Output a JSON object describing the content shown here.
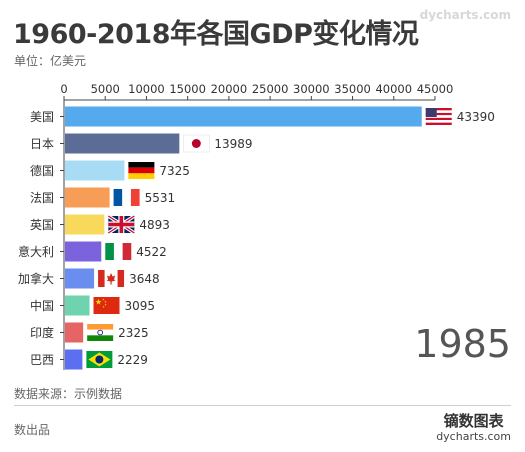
{
  "title": "1960-2018年各国GDP变化情况",
  "unit_label": "单位：亿美元",
  "watermark": "dycharts.com",
  "year": "1985",
  "source": "数据来源：示例数据",
  "footer_left": "数出品",
  "brand": {
    "name": "镝数图表",
    "url": "dycharts.com"
  },
  "chart_data": {
    "type": "bar",
    "orientation": "horizontal",
    "categories": [
      "美国",
      "日本",
      "德国",
      "法国",
      "英国",
      "意大利",
      "加拿大",
      "中国",
      "印度",
      "巴西"
    ],
    "values": [
      43390,
      13989,
      7325,
      5531,
      4893,
      4522,
      3648,
      3095,
      2325,
      2229
    ],
    "value_labels": [
      "43390",
      "13989",
      "7325",
      "5531",
      "4893",
      "4522",
      "3648",
      "3095",
      "2325",
      "2229"
    ],
    "colors": [
      "#55aaee",
      "#5b6d96",
      "#a8dcf5",
      "#f79d55",
      "#f9d95b",
      "#7b63de",
      "#6a8ef0",
      "#6fd3b0",
      "#e56464",
      "#5b6ff0"
    ],
    "flags": [
      "us-flag-icon",
      "japan-flag-icon",
      "germany-flag-icon",
      "france-flag-icon",
      "uk-flag-icon",
      "italy-flag-icon",
      "canada-flag-icon",
      "china-flag-icon",
      "india-flag-icon",
      "brazil-flag-icon"
    ],
    "xlim": [
      0,
      45000
    ],
    "x_ticks": [
      0,
      5000,
      10000,
      15000,
      20000,
      25000,
      30000,
      35000,
      40000,
      45000
    ],
    "x_tick_labels": [
      "0",
      "5000",
      "10000",
      "15000",
      "20000",
      "25000",
      "30000",
      "35000",
      "40000",
      "45000"
    ],
    "grid": false,
    "axis_position": "top"
  }
}
